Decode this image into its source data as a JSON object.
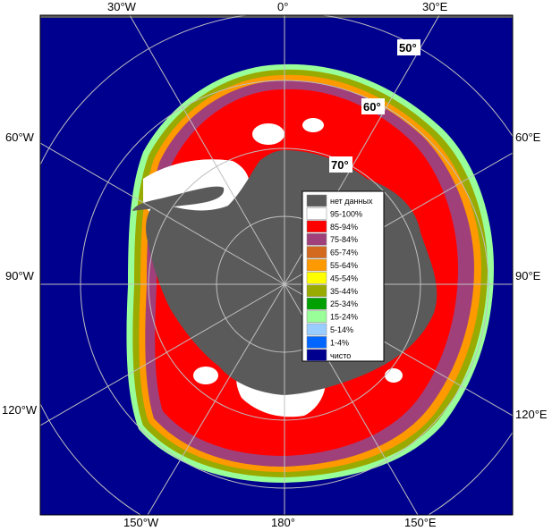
{
  "map": {
    "longitude_labels": {
      "top": [
        "30°W",
        "0°",
        "30°E"
      ],
      "left": [
        "60°W",
        "90°W",
        "120°W"
      ],
      "right": [
        "60°E",
        "90°E",
        "120°E"
      ],
      "bottom": [
        "150°W",
        "180°",
        "150°E"
      ]
    },
    "latitude_labels": [
      "50°",
      "60°",
      "70°"
    ],
    "colors": {
      "ocean": "#00008f",
      "land_no_data": "#5a5a5a",
      "grid": "#bfbfbf",
      "frame": "#000000"
    }
  },
  "legend": {
    "items": [
      {
        "label": "нет данных",
        "color": "#5a5a5a"
      },
      {
        "label": "95-100%",
        "color": "#ffffff"
      },
      {
        "label": "85-94%",
        "color": "#ff0000"
      },
      {
        "label": "75-84%",
        "color": "#a0407a"
      },
      {
        "label": "65-74%",
        "color": "#d2691e"
      },
      {
        "label": "55-64%",
        "color": "#ff9900"
      },
      {
        "label": "45-54%",
        "color": "#ffff00"
      },
      {
        "label": "35-44%",
        "color": "#99aa00"
      },
      {
        "label": "25-34%",
        "color": "#00a000"
      },
      {
        "label": "15-24%",
        "color": "#99ff99"
      },
      {
        "label": "5-14%",
        "color": "#99ccff"
      },
      {
        "label": "1-4%",
        "color": "#0066ff"
      },
      {
        "label": "чисто",
        "color": "#00008f"
      }
    ]
  }
}
